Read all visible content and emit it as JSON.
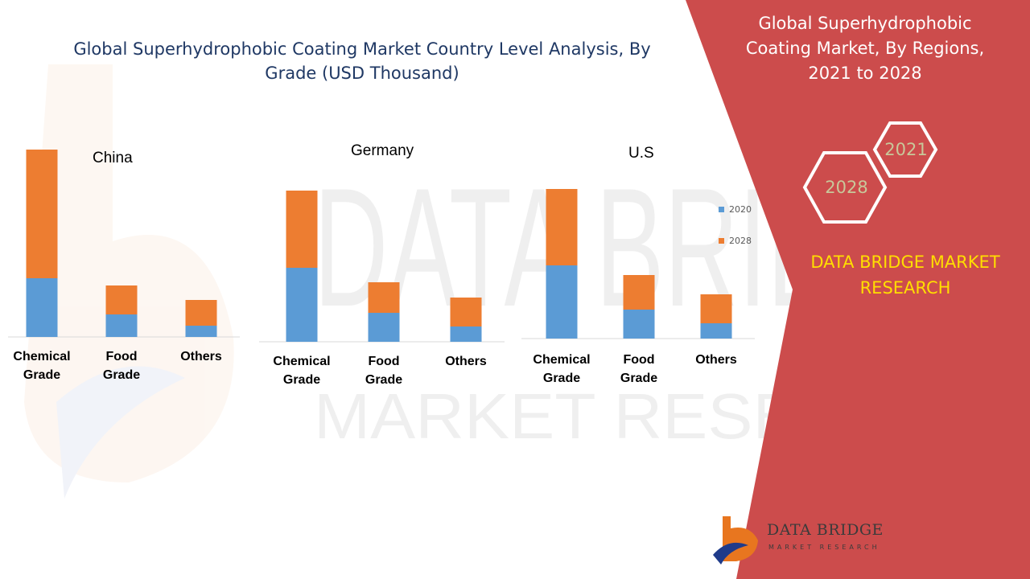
{
  "title": "Global Superhydrophobic Coating Market Country Level Analysis, By Grade (USD Thousand)",
  "side_panel": {
    "title": "Global Superhydrophobic Coating Market, By Regions, 2021 to 2028",
    "hex_a": "2021",
    "hex_b": "2028",
    "brand": "DATA BRIDGE MARKET RESEARCH"
  },
  "legend": {
    "items": [
      {
        "label": "2020",
        "color": "#5b9bd5"
      },
      {
        "label": "2028",
        "color": "#ed7d31"
      }
    ]
  },
  "footer": {
    "name": "DATA BRIDGE",
    "sub": "MARKET RESEARCH"
  },
  "colors": {
    "panel": "#cc4c4c",
    "series_2020": "#5b9bd5",
    "series_2028": "#ed7d31",
    "title_blue": "#1f3864",
    "brand_yellow": "#ffde00"
  },
  "chart_data": [
    {
      "type": "bar",
      "stacked": true,
      "title": "China",
      "categories": [
        "Chemical Grade",
        "Food Grade",
        "Others"
      ],
      "series": [
        {
          "name": "2020",
          "values": [
            73,
            28,
            14
          ]
        },
        {
          "name": "2028",
          "values": [
            160,
            36,
            32
          ]
        }
      ]
    },
    {
      "type": "bar",
      "stacked": true,
      "title": "Germany",
      "categories": [
        "Chemical Grade",
        "Food Grade",
        "Others"
      ],
      "series": [
        {
          "name": "2020",
          "values": [
            92,
            36,
            19
          ]
        },
        {
          "name": "2028",
          "values": [
            96,
            38,
            36
          ]
        }
      ]
    },
    {
      "type": "bar",
      "stacked": true,
      "title": "U.S",
      "categories": [
        "Chemical Grade",
        "Food Grade",
        "Others"
      ],
      "series": [
        {
          "name": "2020",
          "values": [
            91,
            36,
            19
          ]
        },
        {
          "name": "2028",
          "values": [
            95,
            43,
            36
          ]
        }
      ]
    }
  ]
}
